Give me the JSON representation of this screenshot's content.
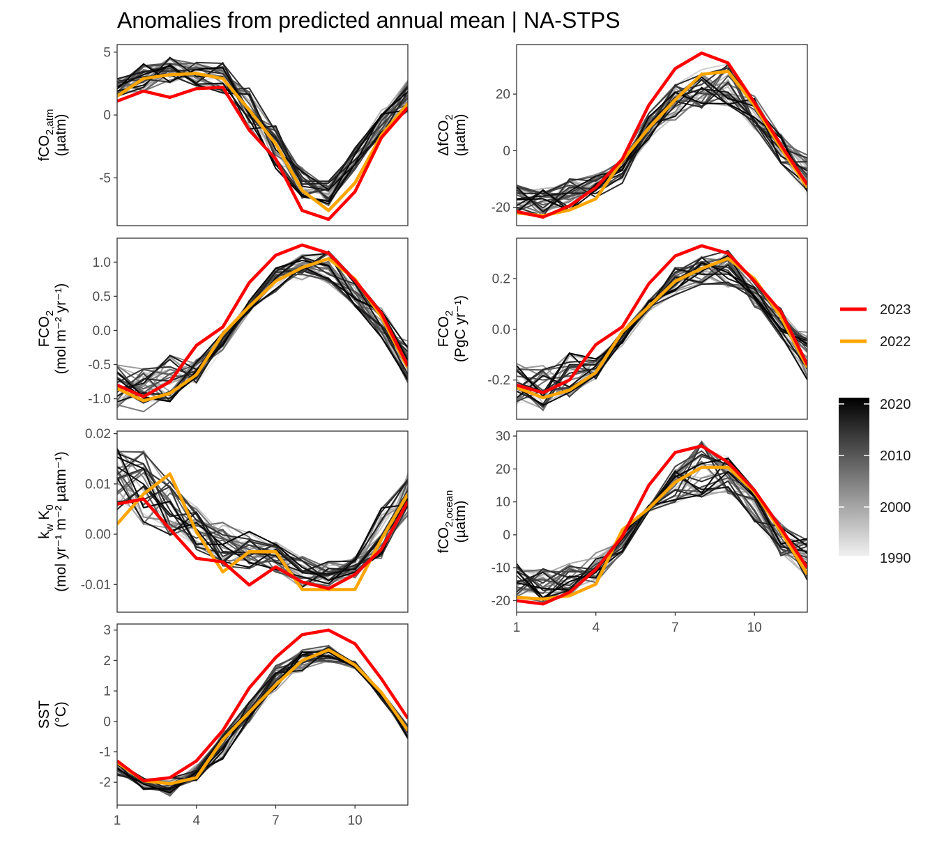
{
  "title": "Anomalies from predicted annual mean | NA-STPS",
  "colors": {
    "y2023": "#ff0000",
    "y2022": "#ffa500",
    "ramp_low": "#f0f0f0",
    "ramp_high": "#000000"
  },
  "x_ticks": [
    "1",
    "4",
    "7",
    "10"
  ],
  "legend": {
    "highlight": [
      {
        "label": "2023",
        "color": "#ff0000"
      },
      {
        "label": "2022",
        "color": "#ffa500"
      }
    ],
    "colorbar_ticks": [
      "2020",
      "2010",
      "2000",
      "1990"
    ]
  },
  "chart_data": [
    {
      "id": "fco2_atm",
      "type": "line",
      "ylabel": {
        "line1_main": "fCO",
        "line1_sub": "2,atm",
        "line1_sup": "",
        "line1_tail": "",
        "line2": "(µatm)"
      },
      "ylim": [
        -8.8,
        5.6
      ],
      "y_ticks": [
        5,
        0,
        -5
      ],
      "y_tick_labels": [
        "5",
        "0",
        "-5"
      ],
      "background_years": [
        1990,
        2021
      ],
      "background_range": {
        "min": [
          1.2,
          1.7,
          2.4,
          2.2,
          1.5,
          -1.5,
          -4.5,
          -7.0,
          -7.4,
          -4.5,
          -1.8,
          0.0
        ],
        "max": [
          3.0,
          4.4,
          4.7,
          4.3,
          4.9,
          2.4,
          -0.4,
          -4.0,
          -5.1,
          -2.5,
          0.5,
          2.9
        ]
      },
      "x": [
        1,
        2,
        3,
        4,
        5,
        6,
        7,
        8,
        9,
        10,
        11,
        12
      ],
      "series": [
        {
          "name": "2023",
          "values": [
            1.1,
            1.9,
            1.4,
            2.1,
            2.2,
            -1.2,
            -3.5,
            -7.6,
            -8.3,
            -6.1,
            -1.8,
            0.6
          ]
        },
        {
          "name": "2022",
          "values": [
            1.5,
            2.9,
            3.2,
            3.3,
            2.9,
            0.4,
            -2.3,
            -6.0,
            -7.6,
            -5.4,
            -1.6,
            0.9
          ]
        }
      ]
    },
    {
      "id": "delta_fco2",
      "type": "line",
      "ylabel": {
        "line1_main": "ΔfCO",
        "line1_sub": "2",
        "line1_sup": "",
        "line1_tail": "",
        "line2": "(µatm)"
      },
      "ylim": [
        -26.5,
        37.5
      ],
      "y_ticks": [
        20,
        0,
        -20
      ],
      "y_tick_labels": [
        "20",
        "0",
        "-20"
      ],
      "background_years": [
        1990,
        2021
      ],
      "background_range": {
        "min": [
          -23.0,
          -24.0,
          -22.0,
          -17.0,
          -12.0,
          3.0,
          10.0,
          14.0,
          15.0,
          7.0,
          -6.0,
          -17.0
        ],
        "max": [
          -11.0,
          -12.0,
          -9.0,
          -8.0,
          -2.0,
          14.0,
          25.0,
          30.0,
          32.0,
          20.0,
          7.0,
          0.0
        ]
      },
      "x": [
        1,
        2,
        3,
        4,
        5,
        6,
        7,
        8,
        9,
        10,
        11,
        12
      ],
      "series": [
        {
          "name": "2023",
          "values": [
            -21.5,
            -23.5,
            -19.5,
            -13.0,
            -3.0,
            16.0,
            29.0,
            34.5,
            31.0,
            17.0,
            2.0,
            -12.0
          ]
        },
        {
          "name": "2022",
          "values": [
            -22.0,
            -23.0,
            -21.0,
            -17.0,
            -3.5,
            8.0,
            18.0,
            27.0,
            28.0,
            16.0,
            1.0,
            -13.0
          ]
        }
      ]
    },
    {
      "id": "fco2_flux_areal",
      "type": "line",
      "ylabel": {
        "line1_main": "FCO",
        "line1_sub": "2",
        "line1_sup": "",
        "line1_tail": "",
        "line2": "(mol m⁻² yr⁻¹)"
      },
      "ylim": [
        -1.3,
        1.35
      ],
      "y_ticks": [
        1.0,
        0.5,
        0.0,
        -0.5,
        -1.0
      ],
      "y_tick_labels": [
        "1.0",
        "0.5",
        "0.0",
        "-0.5",
        "-1.0"
      ],
      "background_years": [
        1990,
        2021
      ],
      "background_range": {
        "min": [
          -1.2,
          -1.25,
          -1.1,
          -0.8,
          -0.3,
          0.25,
          0.55,
          0.7,
          0.65,
          0.3,
          -0.15,
          -0.8
        ],
        "max": [
          -0.45,
          -0.5,
          -0.3,
          -0.4,
          0.0,
          0.45,
          0.95,
          1.15,
          1.2,
          0.8,
          0.35,
          -0.1
        ]
      },
      "x": [
        1,
        2,
        3,
        4,
        5,
        6,
        7,
        8,
        9,
        10,
        11,
        12
      ],
      "series": [
        {
          "name": "2023",
          "values": [
            -0.8,
            -0.97,
            -0.75,
            -0.22,
            0.05,
            0.7,
            1.1,
            1.25,
            1.13,
            0.73,
            0.25,
            -0.52
          ]
        },
        {
          "name": "2022",
          "values": [
            -0.85,
            -1.03,
            -0.92,
            -0.65,
            -0.05,
            0.35,
            0.72,
            0.92,
            1.05,
            0.75,
            0.2,
            -0.55
          ]
        }
      ]
    },
    {
      "id": "fco2_flux_total",
      "type": "line",
      "ylabel": {
        "line1_main": "FCO",
        "line1_sub": "2",
        "line1_sup": "",
        "line1_tail": "",
        "line2": "(PgC yr⁻¹)"
      },
      "ylim": [
        -0.355,
        0.36
      ],
      "y_ticks": [
        0.2,
        0.0,
        -0.2
      ],
      "y_tick_labels": [
        "0.2",
        "0.0",
        "-0.2"
      ],
      "background_years": [
        1990,
        2021
      ],
      "background_range": {
        "min": [
          -0.31,
          -0.33,
          -0.29,
          -0.2,
          -0.08,
          0.07,
          0.13,
          0.17,
          0.15,
          0.08,
          -0.04,
          -0.21
        ],
        "max": [
          -0.12,
          -0.13,
          -0.08,
          -0.1,
          0.0,
          0.12,
          0.25,
          0.3,
          0.32,
          0.21,
          0.09,
          0.0
        ]
      },
      "x": [
        1,
        2,
        3,
        4,
        5,
        6,
        7,
        8,
        9,
        10,
        11,
        12
      ],
      "series": [
        {
          "name": "2023",
          "values": [
            -0.22,
            -0.25,
            -0.2,
            -0.06,
            0.01,
            0.18,
            0.29,
            0.33,
            0.3,
            0.19,
            0.07,
            -0.14
          ]
        },
        {
          "name": "2022",
          "values": [
            -0.23,
            -0.27,
            -0.24,
            -0.17,
            -0.01,
            0.09,
            0.19,
            0.24,
            0.28,
            0.2,
            0.05,
            -0.15
          ]
        }
      ]
    },
    {
      "id": "kw_k0",
      "type": "line",
      "ylabel": {
        "line1_main": "k",
        "line1_sub": "w",
        "line1_sup": "",
        "line1_tail": " K",
        "line1_sub2": "0",
        "line2": "(mol yr⁻¹ m⁻² µatm⁻¹)"
      },
      "ylim": [
        -0.0155,
        0.0205
      ],
      "y_ticks": [
        0.02,
        0.01,
        0.0,
        -0.01
      ],
      "y_tick_labels": [
        "0.02",
        "0.01",
        "0.00",
        "-0.01"
      ],
      "background_years": [
        1990,
        2021
      ],
      "background_range": {
        "min": [
          0.004,
          0.001,
          -0.001,
          -0.004,
          -0.007,
          -0.008,
          -0.008,
          -0.011,
          -0.011,
          -0.009,
          -0.007,
          0.003
        ],
        "max": [
          0.018,
          0.018,
          0.012,
          0.006,
          0.004,
          0.001,
          -0.001,
          -0.004,
          -0.005,
          -0.004,
          0.006,
          0.013
        ]
      },
      "x": [
        1,
        2,
        3,
        4,
        5,
        6,
        7,
        8,
        9,
        10,
        11,
        12
      ],
      "series": [
        {
          "name": "2023",
          "values": [
            0.006,
            0.007,
            0.001,
            -0.0048,
            -0.0055,
            -0.0101,
            -0.0065,
            -0.0095,
            -0.0108,
            -0.008,
            -0.003,
            0.0065
          ]
        },
        {
          "name": "2022",
          "values": [
            0.002,
            0.008,
            0.012,
            0.0005,
            -0.0075,
            -0.0035,
            -0.0035,
            -0.011,
            -0.011,
            -0.011,
            -0.001,
            0.008
          ]
        }
      ]
    },
    {
      "id": "fco2_ocean",
      "type": "line",
      "ylabel": {
        "line1_main": "fCO",
        "line1_sub": "2,ocean",
        "line1_sup": "",
        "line1_tail": "",
        "line2": "(µatm)"
      },
      "ylim": [
        -23.5,
        31.5
      ],
      "y_ticks": [
        30,
        20,
        10,
        0,
        -10,
        -20
      ],
      "y_tick_labels": [
        "30",
        "20",
        "10",
        "0",
        "-10",
        "-20"
      ],
      "background_years": [
        1990,
        2021
      ],
      "background_range": {
        "min": [
          -20.0,
          -21.0,
          -19.0,
          -15.0,
          -6.0,
          7.0,
          9.0,
          10.0,
          11.0,
          3.0,
          -7.0,
          -15.0
        ],
        "max": [
          -8.0,
          -9.0,
          -8.0,
          -5.0,
          1.0,
          9.0,
          22.0,
          29.5,
          24.5,
          15.0,
          4.0,
          0.0
        ]
      },
      "x": [
        1,
        2,
        3,
        4,
        5,
        6,
        7,
        8,
        9,
        10,
        11,
        12
      ],
      "series": [
        {
          "name": "2023",
          "values": [
            -20.0,
            -21.0,
            -17.5,
            -10.5,
            -0.5,
            15.0,
            25.0,
            27.0,
            22.0,
            13.5,
            2.0,
            -10.0
          ]
        },
        {
          "name": "2022",
          "values": [
            -19.0,
            -19.5,
            -18.5,
            -15.0,
            1.5,
            8.0,
            16.0,
            20.5,
            20.5,
            13.0,
            1.0,
            -12.0
          ]
        }
      ]
    },
    {
      "id": "sst",
      "type": "line",
      "ylabel": {
        "line1_main": "SST",
        "line1_sub": "",
        "line1_sup": "",
        "line1_tail": "",
        "line2": "(°C)"
      },
      "ylim": [
        -2.75,
        3.2
      ],
      "y_ticks": [
        3,
        2,
        1,
        0,
        -1,
        -2
      ],
      "y_tick_labels": [
        "3",
        "2",
        "1",
        "0",
        "-1",
        "-2"
      ],
      "background_years": [
        1990,
        2021
      ],
      "background_range": {
        "min": [
          -1.8,
          -2.3,
          -2.5,
          -2.0,
          -1.3,
          -0.1,
          0.9,
          1.6,
          1.9,
          1.7,
          0.7,
          -0.6
        ],
        "max": [
          -1.3,
          -1.8,
          -1.8,
          -1.4,
          -0.3,
          0.7,
          1.9,
          2.4,
          2.6,
          2.0,
          1.0,
          -0.1
        ]
      },
      "x": [
        1,
        2,
        3,
        4,
        5,
        6,
        7,
        8,
        9,
        10,
        11,
        12
      ],
      "series": [
        {
          "name": "2023",
          "values": [
            -1.3,
            -1.95,
            -1.85,
            -1.3,
            -0.3,
            1.1,
            2.1,
            2.85,
            3.0,
            2.55,
            1.4,
            0.1
          ]
        },
        {
          "name": "2022",
          "values": [
            -1.35,
            -1.95,
            -2.05,
            -1.85,
            -0.6,
            0.3,
            1.2,
            2.0,
            2.35,
            1.85,
            0.95,
            -0.3
          ]
        }
      ]
    }
  ]
}
